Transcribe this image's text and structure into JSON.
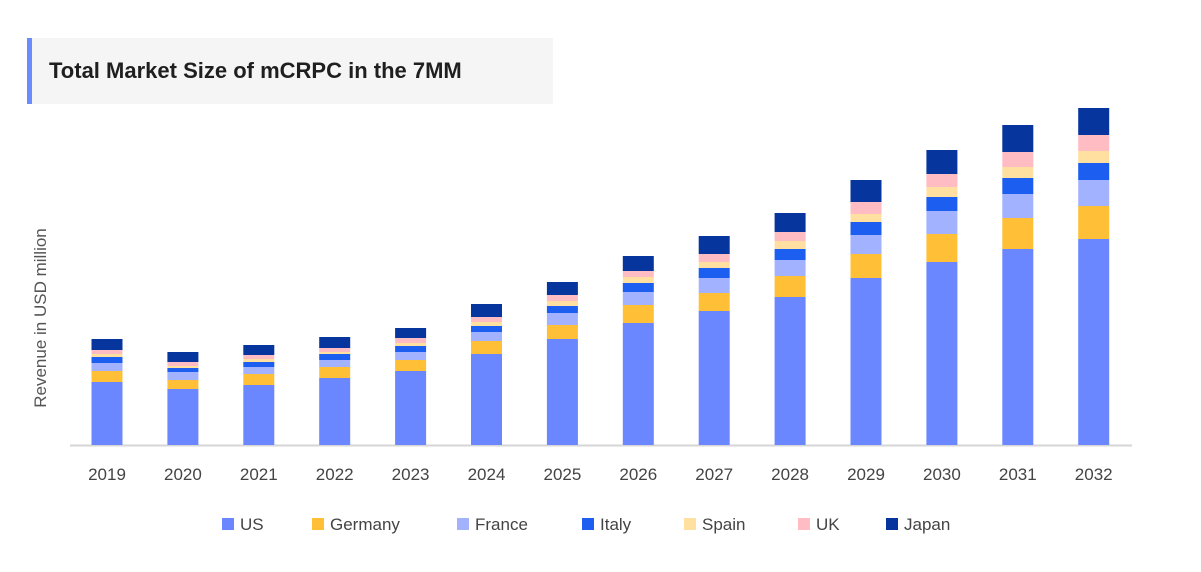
{
  "chart_data": {
    "type": "bar",
    "stacked": true,
    "title": "Total Market Size of mCRPC in the 7MM",
    "xlabel": "",
    "ylabel": "Revenue in USD million",
    "y_tick_labels_shown": false,
    "value_units": "relative (estimated from bar heights; no y-axis ticks shown)",
    "grid": false,
    "legend_position": "bottom",
    "categories": [
      "2019",
      "2020",
      "2021",
      "2022",
      "2023",
      "2024",
      "2025",
      "2026",
      "2027",
      "2028",
      "2029",
      "2030",
      "2031",
      "2032"
    ],
    "series": [
      {
        "name": "US",
        "color": "#6b87ff",
        "values": [
          63,
          56,
          60,
          67,
          74,
          91,
          106,
          122,
          134,
          148,
          167,
          183,
          196,
          206
        ]
      },
      {
        "name": "Germany",
        "color": "#ffc038",
        "values": [
          11,
          9,
          11,
          11,
          11,
          13,
          14,
          18,
          18,
          21,
          24,
          28,
          31,
          33
        ]
      },
      {
        "name": "France",
        "color": "#a2b2ff",
        "values": [
          8,
          8,
          7,
          7,
          8,
          9,
          12,
          13,
          15,
          16,
          19,
          23,
          24,
          26
        ]
      },
      {
        "name": "Italy",
        "color": "#1c5ef0",
        "values": [
          6,
          4,
          5,
          6,
          6,
          6,
          7,
          9,
          10,
          11,
          13,
          14,
          16,
          17
        ]
      },
      {
        "name": "Spain",
        "color": "#ffe0a0",
        "values": [
          3,
          2,
          3,
          2,
          3,
          4,
          5,
          6,
          6,
          8,
          8,
          10,
          11,
          12
        ]
      },
      {
        "name": "UK",
        "color": "#ffbcc2",
        "values": [
          4,
          4,
          4,
          4,
          5,
          5,
          6,
          6,
          8,
          9,
          12,
          13,
          15,
          16
        ]
      },
      {
        "name": "Japan",
        "color": "#07359e",
        "values": [
          11,
          10,
          10,
          11,
          10,
          13,
          13,
          15,
          18,
          19,
          22,
          24,
          27,
          27
        ]
      }
    ],
    "ylim": [
      0,
      345
    ]
  }
}
